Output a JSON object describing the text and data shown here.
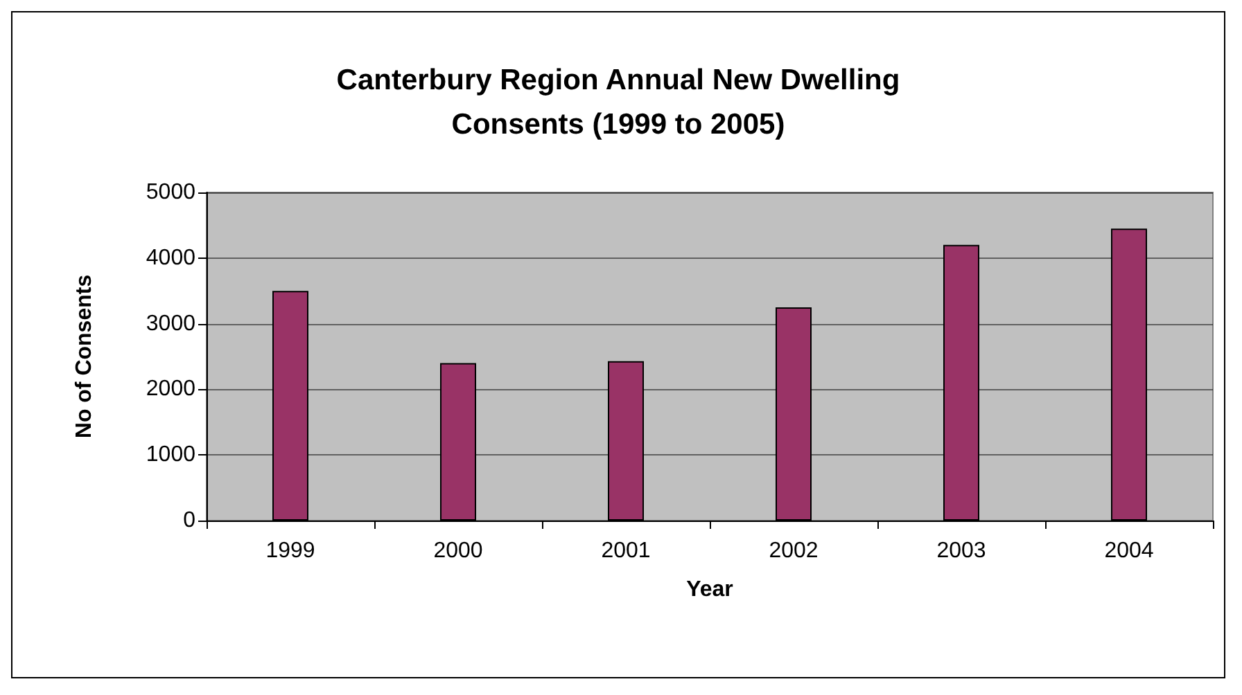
{
  "chart_data": {
    "type": "bar",
    "title": "Canterbury Region Annual New Dwelling\nConsents (1999 to 2005)",
    "xlabel": "Year",
    "ylabel": "No of Consents",
    "categories": [
      "1999",
      "2000",
      "2001",
      "2002",
      "2003",
      "2004"
    ],
    "values": [
      3500,
      2400,
      2430,
      3250,
      4200,
      4450
    ],
    "color": "#993366",
    "ylim": [
      0,
      5000
    ],
    "yticks": [
      0,
      1000,
      2000,
      3000,
      4000,
      5000
    ],
    "grid": "y"
  }
}
